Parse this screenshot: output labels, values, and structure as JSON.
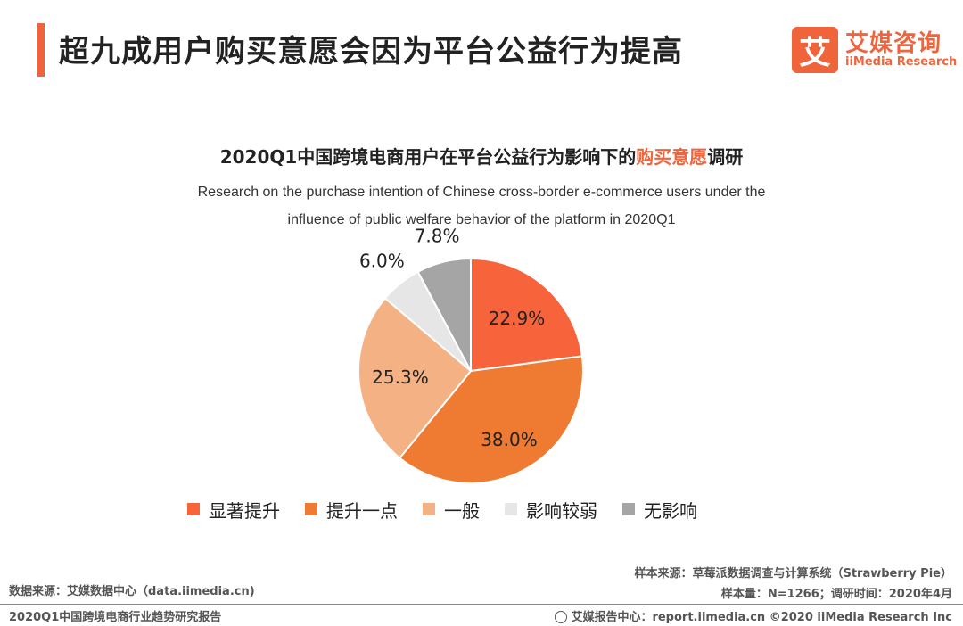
{
  "header": {
    "title": "超九成用户购买意愿会因为平台公益行为提高",
    "logo_mark": "艾",
    "logo_cn": "艾媒咨询",
    "logo_en": "iiMedia Research",
    "accent_color": "#f0643c"
  },
  "chart_data": {
    "type": "pie",
    "title_prefix": "2020Q1中国跨境电商用户在平台公益行为影响下的",
    "title_highlight": "购买意愿",
    "title_suffix": "调研",
    "subtitle_line1": "Research on the purchase intention of Chinese cross-border e-commerce users under the",
    "subtitle_line2": "influence of public welfare behavior of the platform in 2020Q1",
    "slices": [
      {
        "label": "显著提升",
        "value": 22.9,
        "display": "22.9%",
        "color": "#f7643b"
      },
      {
        "label": "提升一点",
        "value": 38.0,
        "display": "38.0%",
        "color": "#ee7b31"
      },
      {
        "label": "一般",
        "value": 25.3,
        "display": "25.3%",
        "color": "#f4b184"
      },
      {
        "label": "影响较弱",
        "value": 6.0,
        "display": "6.0%",
        "color": "#e7e6e6"
      },
      {
        "label": "无影响",
        "value": 7.8,
        "display": "7.8%",
        "color": "#a5a5a5"
      }
    ]
  },
  "footer": {
    "source": "数据来源：艾媒数据中心（data.iimedia.cn)",
    "report": "2020Q1中国跨境电商行业趋势研究报告",
    "sample_source": "样本来源：草莓派数据调查与计算系统（Strawberry Pie）",
    "sample_size": "样本量：N=1266；调研时间：2020年4月",
    "center": "艾媒报告中心：report.iimedia.cn  ©2020  iiMedia Research  Inc"
  }
}
